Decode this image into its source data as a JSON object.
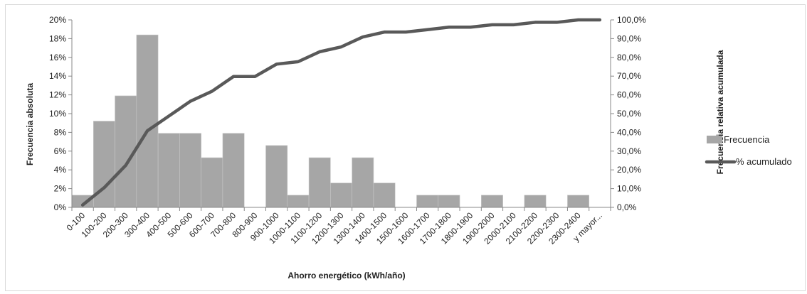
{
  "chart_data": {
    "type": "bar",
    "categories": [
      "0-100",
      "100-200",
      "200-300",
      "300-400",
      "400-500",
      "500-600",
      "600-700",
      "700-800",
      "800-900",
      "900-1000",
      "1000-1100",
      "1100-1200",
      "1200-1300",
      "1300-1400",
      "1400-1500",
      "1500-1600",
      "1600-1700",
      "1700-1800",
      "1800-1900",
      "1900-2000",
      "2000-2100",
      "2100-2200",
      "2200-2300",
      "2300-2400",
      "y mayor..."
    ],
    "series": [
      {
        "name": "Frecuencia",
        "type": "bar",
        "axis": "left",
        "values": [
          1.3,
          9.2,
          11.9,
          18.4,
          7.9,
          7.9,
          5.3,
          7.9,
          0,
          6.6,
          1.3,
          5.3,
          2.6,
          5.3,
          2.6,
          0,
          1.3,
          1.3,
          0,
          1.3,
          0,
          1.3,
          0,
          1.3,
          0
        ]
      },
      {
        "name": "% acumulado",
        "type": "line",
        "axis": "right",
        "values": [
          1.3,
          10.5,
          22.4,
          40.8,
          48.7,
          56.6,
          61.9,
          69.8,
          69.8,
          76.4,
          77.7,
          83.0,
          85.6,
          90.9,
          93.5,
          93.5,
          94.8,
          96.1,
          96.1,
          97.4,
          97.4,
          98.7,
          98.7,
          100.0,
          100.0
        ]
      }
    ],
    "xlabel": "Ahorro energético (kWh/año)",
    "ylabel": "Frecuencia absoluta",
    "y2label": "Frecuencia relativa acumulada",
    "ylim": [
      0,
      20
    ],
    "y2lim": [
      0,
      100
    ],
    "yticks": [
      "0%",
      "2%",
      "4%",
      "6%",
      "8%",
      "10%",
      "12%",
      "14%",
      "16%",
      "18%",
      "20%"
    ],
    "y2ticks": [
      "0,0%",
      "10,0%",
      "20,0%",
      "30,0%",
      "40,0%",
      "50,0%",
      "60,0%",
      "70,0%",
      "80,0%",
      "90,0%",
      "100,0%"
    ],
    "grid": false,
    "legend_position": "right",
    "colors": {
      "bar": "#a6a6a6",
      "line": "#595959",
      "axis": "#888888"
    }
  }
}
